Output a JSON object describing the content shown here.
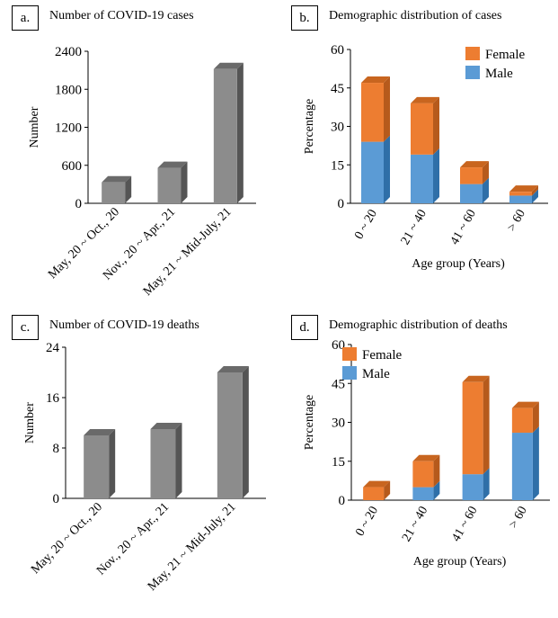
{
  "colors": {
    "gray_front": "#8c8c8c",
    "gray_side": "#555555",
    "gray_top": "#6a6a6a",
    "female_front": "#ed7d31",
    "female_side": "#b65a1c",
    "female_top": "#c8651f",
    "male_front": "#5b9bd5",
    "male_side": "#2f6fa8",
    "male_top": "#4a86be"
  },
  "chart_data": [
    {
      "id": "a",
      "letter": "a.",
      "type": "bar",
      "title": "Number of COVID-19 cases",
      "ylabel": "Number",
      "xlabel": "",
      "ylim": [
        0,
        2400
      ],
      "yticks": [
        0,
        600,
        1200,
        1800,
        2400
      ],
      "categories": [
        "May, 20 ~ Oct., 20",
        "Nov., 20 ~ Apr., 21",
        "May, 21 ~ Mid-July, 21"
      ],
      "values": [
        330,
        560,
        2120
      ]
    },
    {
      "id": "b",
      "letter": "b.",
      "type": "bar",
      "stacked": true,
      "title": "Demographic distribution of cases",
      "ylabel": "Percentage",
      "xlabel": "Age group (Years)",
      "ylim": [
        0,
        60
      ],
      "yticks": [
        0,
        15,
        30,
        45,
        60
      ],
      "legend_position": "top-right",
      "categories": [
        "0 ~ 20",
        "21 ~ 40",
        "41 ~ 60",
        "> 60"
      ],
      "series": [
        {
          "name": "Male",
          "values": [
            24,
            19,
            7.5,
            3
          ]
        },
        {
          "name": "Female",
          "values": [
            23,
            20,
            6.5,
            1.5
          ]
        }
      ]
    },
    {
      "id": "c",
      "letter": "c.",
      "type": "bar",
      "title": "Number of COVID-19 deaths",
      "ylabel": "Number",
      "xlabel": "",
      "ylim": [
        0,
        24
      ],
      "yticks": [
        0,
        8,
        16,
        24
      ],
      "categories": [
        "May, 20 ~ Oct., 20",
        "Nov., 20 ~ Apr., 21",
        "May, 21 ~ Mid-July, 21"
      ],
      "values": [
        10,
        11,
        20
      ]
    },
    {
      "id": "d",
      "letter": "d.",
      "type": "bar",
      "stacked": true,
      "title": "Demographic distribution of deaths",
      "ylabel": "Percentage",
      "xlabel": "Age group (Years)",
      "ylim": [
        0,
        60
      ],
      "yticks": [
        0,
        15,
        30,
        45,
        60
      ],
      "legend_position": "top-left",
      "categories": [
        "0 ~ 20",
        "21 ~ 40",
        "41 ~ 60",
        "> 60"
      ],
      "series": [
        {
          "name": "Male",
          "values": [
            0,
            5,
            10,
            26
          ]
        },
        {
          "name": "Female",
          "values": [
            5,
            10,
            35.5,
            9.5
          ]
        }
      ]
    }
  ]
}
